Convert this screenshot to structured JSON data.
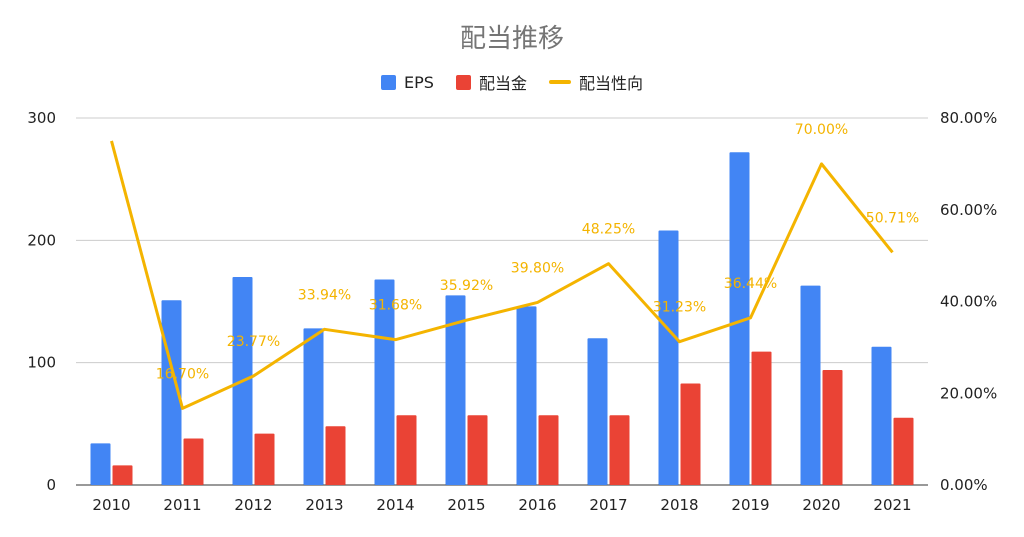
{
  "chart_data": {
    "type": "bar",
    "title": "配当推移",
    "categories": [
      "2010",
      "2011",
      "2012",
      "2013",
      "2014",
      "2015",
      "2016",
      "2017",
      "2018",
      "2019",
      "2020",
      "2021"
    ],
    "series": [
      {
        "name": "EPS",
        "kind": "bar",
        "axis": "left",
        "color": "#4285F4",
        "values": [
          34,
          151,
          170,
          128,
          168,
          155,
          146,
          120,
          208,
          272,
          163,
          113
        ]
      },
      {
        "name": "配当金",
        "kind": "bar",
        "axis": "left",
        "color": "#EA4335",
        "values": [
          16,
          38,
          42,
          48,
          57,
          57,
          57,
          57,
          83,
          109,
          94,
          55
        ]
      },
      {
        "name": "配当性向",
        "kind": "line",
        "axis": "right",
        "color": "#F4B400",
        "values": [
          0.75,
          0.167,
          0.2377,
          0.3394,
          0.3168,
          0.3592,
          0.398,
          0.4825,
          0.3123,
          0.3644,
          0.7,
          0.5071
        ],
        "labels": [
          "",
          "16.70%",
          "23.77%",
          "33.94%",
          "31.68%",
          "35.92%",
          "39.80%",
          "48.25%",
          "31.23%",
          "36.44%",
          "70.00%",
          "50.71%"
        ]
      }
    ],
    "y_left": {
      "ylim": [
        0,
        300
      ],
      "ticks": [
        "0",
        "100",
        "200",
        "300"
      ],
      "tick_values": [
        0,
        100,
        200,
        300
      ]
    },
    "y_right": {
      "ylim": [
        0,
        0.8
      ],
      "ticks": [
        "0.00%",
        "20.00%",
        "40.00%",
        "60.00%",
        "80.00%"
      ],
      "tick_values": [
        0,
        0.2,
        0.4,
        0.6,
        0.8
      ]
    },
    "grid": true,
    "legend_position": "top"
  }
}
